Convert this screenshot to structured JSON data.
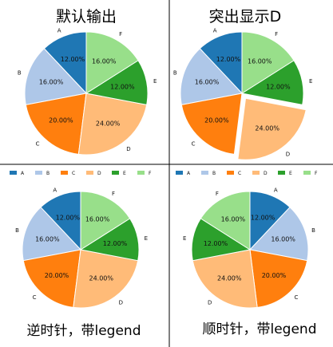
{
  "chart_data": [
    {
      "type": "pie",
      "title": "默认输出",
      "categories": [
        "A",
        "B",
        "C",
        "D",
        "E",
        "F"
      ],
      "values": [
        12,
        16,
        20,
        24,
        12,
        16
      ],
      "labels": [
        "12.00%",
        "16.00%",
        "20.00%",
        "24.00%",
        "12.00%",
        "16.00%"
      ],
      "start_angle_deg": 90,
      "direction": "counterclockwise",
      "explode": [
        0,
        0,
        0,
        0,
        0,
        0
      ],
      "legend": null
    },
    {
      "type": "pie",
      "title": "突出显示D",
      "categories": [
        "A",
        "B",
        "C",
        "D",
        "E",
        "F"
      ],
      "values": [
        12,
        16,
        20,
        24,
        12,
        16
      ],
      "labels": [
        "12.00%",
        "16.00%",
        "20.00%",
        "24.00%",
        "12.00%",
        "16.00%"
      ],
      "start_angle_deg": 90,
      "direction": "counterclockwise",
      "explode": [
        0,
        0,
        0,
        0.1,
        0,
        0
      ],
      "legend": null
    },
    {
      "type": "pie",
      "title": "逆时针，带legend",
      "categories": [
        "A",
        "B",
        "C",
        "D",
        "E",
        "F"
      ],
      "values": [
        12,
        16,
        20,
        24,
        12,
        16
      ],
      "labels": [
        "12.00%",
        "16.00%",
        "20.00%",
        "24.00%",
        "12.00%",
        "16.00%"
      ],
      "start_angle_deg": 90,
      "direction": "counterclockwise",
      "explode": [
        0,
        0,
        0,
        0,
        0,
        0
      ],
      "legend": {
        "placement": "top",
        "entries": [
          "A",
          "B",
          "C",
          "D",
          "E",
          "F"
        ]
      }
    },
    {
      "type": "pie",
      "title": "顺时针，带legend",
      "categories": [
        "A",
        "B",
        "C",
        "D",
        "E",
        "F"
      ],
      "values": [
        12,
        16,
        20,
        24,
        12,
        16
      ],
      "labels": [
        "12.00%",
        "16.00%",
        "20.00%",
        "24.00%",
        "12.00%",
        "16.00%"
      ],
      "start_angle_deg": 90,
      "direction": "clockwise",
      "explode": [
        0,
        0,
        0,
        0,
        0,
        0
      ],
      "legend": {
        "placement": "top",
        "entries": [
          "A",
          "B",
          "C",
          "D",
          "E",
          "F"
        ]
      }
    }
  ],
  "colors": {
    "A": "#1f77b4",
    "B": "#aec7e8",
    "C": "#ff7f0e",
    "D": "#ffbb78",
    "E": "#2ca02c",
    "F": "#98df8a"
  }
}
